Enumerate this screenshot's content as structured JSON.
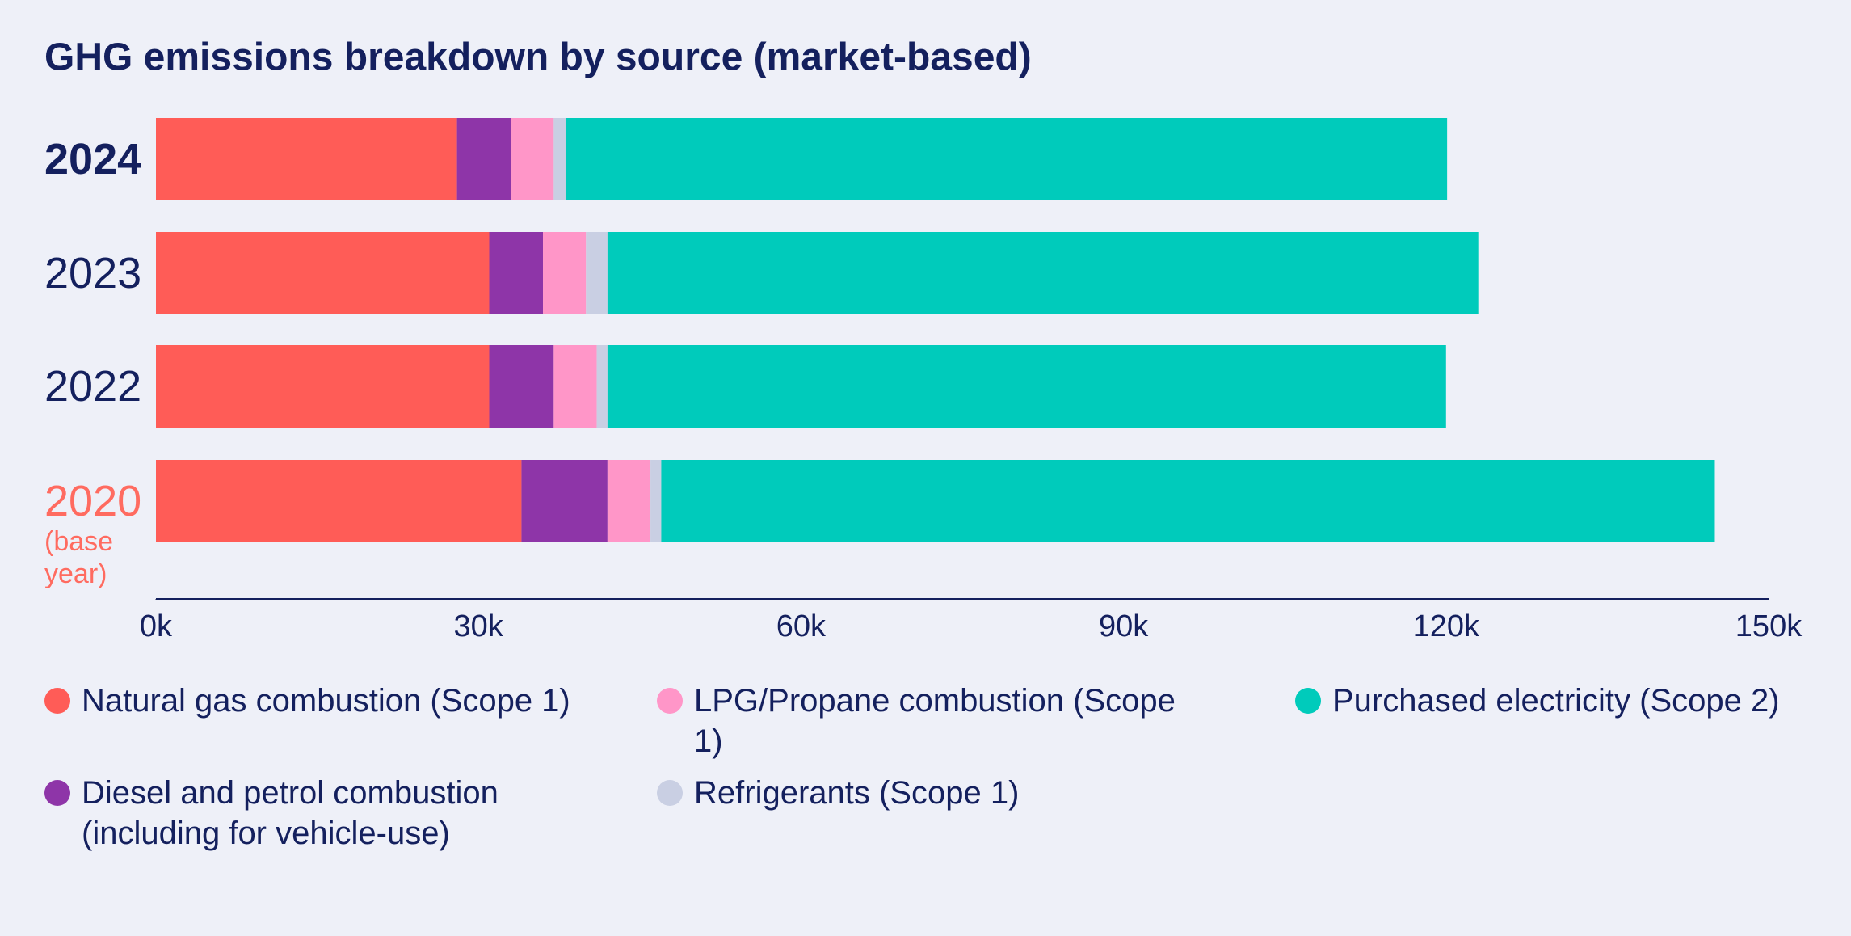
{
  "chart_data": {
    "type": "stacked_barh",
    "title": "GHG emissions breakdown by source (market-based)",
    "categories": [
      "2024",
      "2023",
      "2022",
      "2020"
    ],
    "category_note": "(base year)",
    "series": [
      {
        "name": "Natural gas combustion (Scope 1)",
        "color": "#ff5c57",
        "values": [
          28,
          31,
          31,
          34
        ]
      },
      {
        "name": "Diesel and petrol combustion (including for vehicle-use)",
        "color": "#8e35a8",
        "values": [
          5,
          5,
          6,
          8
        ]
      },
      {
        "name": "LPG/Propane combustion (Scope 1)",
        "color": "#ff96c8",
        "values": [
          4,
          4,
          4,
          4
        ]
      },
      {
        "name": "Refrigerants (Scope 1)",
        "color": "#c9cfe3",
        "values": [
          1.1,
          2,
          1,
          1
        ]
      },
      {
        "name": "Purchased electricity (Scope 2)",
        "color": "#00cbbb",
        "values": [
          82,
          81,
          78,
          98
        ]
      }
    ],
    "xlim": [
      0,
      150
    ],
    "xticks": [
      {
        "value": 0,
        "label": "0k"
      },
      {
        "value": 30,
        "label": "30k"
      },
      {
        "value": 60,
        "label": "60k"
      },
      {
        "value": 90,
        "label": "90k"
      },
      {
        "value": 120,
        "label": "120k"
      },
      {
        "value": 150,
        "label": "150k"
      }
    ]
  }
}
